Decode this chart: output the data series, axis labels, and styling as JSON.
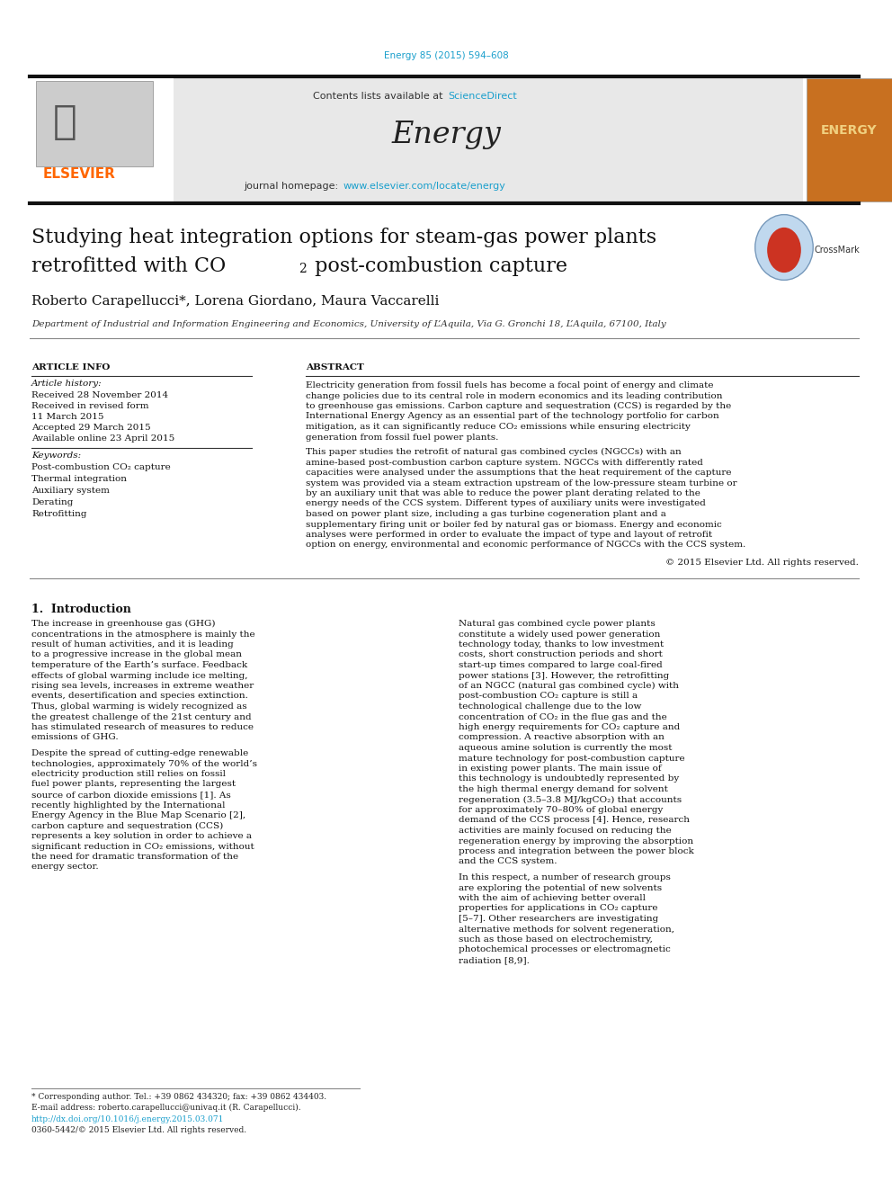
{
  "fig_width": 9.92,
  "fig_height": 13.23,
  "bg_color": "#ffffff",
  "journal_ref": "Energy 85 (2015) 594–608",
  "contents_text": "Contents lists available at ",
  "sciencedirect_text": "ScienceDirect",
  "homepage_text": "journal homepage: ",
  "homepage_link": "www.elsevier.com/locate/energy",
  "journal_name": "Energy",
  "title_line1": "Studying heat integration options for steam-gas power plants",
  "title_line2_pre": "retrofitted with CO",
  "title_line2_sub": "2",
  "title_line2_post": " post-combustion capture",
  "authors": "Roberto Carapellucci*, Lorena Giordano, Maura Vaccarelli",
  "affiliation": "Department of Industrial and Information Engineering and Economics, University of L’Aquila, Via G. Gronchi 18, L’Aquila, 67100, Italy",
  "article_info_header": "ARTICLE INFO",
  "article_history_label": "Article history:",
  "received": "Received 28 November 2014",
  "received_revised": "Received in revised form",
  "revised_date": "11 March 2015",
  "accepted": "Accepted 29 March 2015",
  "available": "Available online 23 April 2015",
  "keywords_label": "Keywords:",
  "keywords": [
    "Post-combustion CO₂ capture",
    "Thermal integration",
    "Auxiliary system",
    "Derating",
    "Retrofitting"
  ],
  "abstract_header": "ABSTRACT",
  "abstract_para1": "Electricity generation from fossil fuels has become a focal point of energy and climate change policies due to its central role in modern economics and its leading contribution to greenhouse gas emissions. Carbon capture and sequestration (CCS) is regarded by the International Energy Agency as an essential part of the technology portfolio for carbon mitigation, as it can significantly reduce CO₂ emissions while ensuring electricity generation from fossil fuel power plants.",
  "abstract_para2": "This paper studies the retrofit of natural gas combined cycles (NGCCs) with an amine-based post-combustion carbon capture system. NGCCs with differently rated capacities were analysed under the assumptions that the heat requirement of the capture system was provided via a steam extraction upstream of the low-pressure steam turbine or by an auxiliary unit that was able to reduce the power plant derating related to the energy needs of the CCS system. Different types of auxiliary units were investigated based on power plant size, including a gas turbine cogeneration plant and a supplementary firing unit or boiler fed by natural gas or biomass. Energy and economic analyses were performed in order to evaluate the impact of type and layout of retrofit option on energy, environmental and economic performance of NGCCs with the CCS system.",
  "copyright": "© 2015 Elsevier Ltd. All rights reserved.",
  "intro_header": "1.  Introduction",
  "intro_col1_para1": "The increase in greenhouse gas (GHG) concentrations in the atmosphere is mainly the result of human activities, and it is leading to a progressive increase in the global mean temperature of the Earth’s surface. Feedback effects of global warming include ice melting, rising sea levels, increases in extreme weather events, desertification and species extinction. Thus, global warming is widely recognized as the greatest challenge of the 21st century and has stimulated research of measures to reduce emissions of GHG.",
  "intro_col1_para2": "Despite the spread of cutting-edge renewable technologies, approximately 70% of the world’s electricity production still relies on fossil fuel power plants, representing the largest source of carbon dioxide emissions [1]. As recently highlighted by the International Energy Agency in the Blue Map Scenario [2], carbon capture and sequestration (CCS) represents a key solution in order to achieve a significant reduction in CO₂ emissions, without the need for dramatic transformation of the energy sector.",
  "intro_col2_para1": "Natural gas combined cycle power plants constitute a widely used power generation technology today, thanks to low investment costs, short construction periods and short start-up times compared to large coal-fired power stations [3]. However, the retrofitting of an NGCC (natural gas combined cycle) with post-combustion CO₂ capture is still a technological challenge due to the low concentration of CO₂ in the flue gas and the high energy requirements for CO₂ capture and compression. A reactive absorption with an aqueous amine solution is currently the most mature technology for post-combustion capture in existing power plants. The main issue of this technology is undoubtedly represented by the high thermal energy demand for solvent regeneration (3.5–3.8 MJ/kgCO₂) that accounts for approximately 70–80% of global energy demand of the CCS process [4]. Hence, research activities are mainly focused on reducing the regeneration energy by improving the absorption process and integration between the power block and the CCS system.",
  "intro_col2_para2": "In this respect, a number of research groups are exploring the potential of new solvents with the aim of achieving better overall properties for applications in CO₂ capture [5–7]. Other researchers are investigating alternative methods for solvent regeneration, such as those based on electrochemistry, photochemical processes or electromagnetic radiation [8,9].",
  "footnote1": "* Corresponding author. Tel.: +39 0862 434320; fax: +39 0862 434403.",
  "footnote2": "E-mail address: roberto.carapellucci@univaq.it (R. Carapellucci).",
  "doi_text": "http://dx.doi.org/10.1016/j.energy.2015.03.071",
  "issn_text": "0360-5442/© 2015 Elsevier Ltd. All rights reserved.",
  "elsevier_color": "#FF6600",
  "link_blue": "#1a9fcc",
  "text_color": "#111111"
}
